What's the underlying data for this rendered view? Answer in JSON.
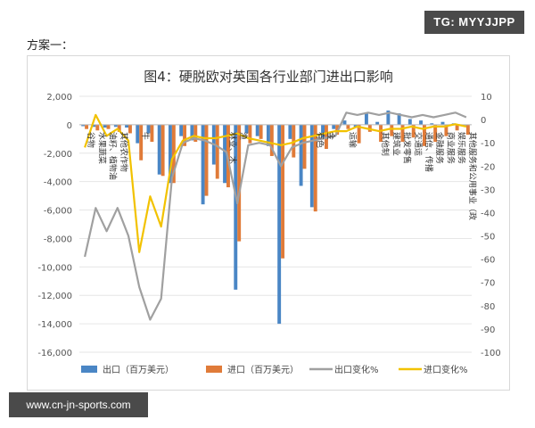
{
  "header": {
    "badge": "TG: MYYJJPP",
    "scheme_label": "方案一："
  },
  "footer": {
    "site": "www.cn-jn-sports.com"
  },
  "colors": {
    "export": "#4a86c5",
    "import": "#e07b39",
    "export_pct": "#a0a0a0",
    "import_pct": "#f2c200"
  },
  "chart_data": {
    "type": "bar",
    "title": "图4：硬脱欧对英国各行业部门进出口影响",
    "left_ylim": [
      -16000,
      2000
    ],
    "left_yticks": [
      "2,000",
      "0",
      "-2,000",
      "-4,000",
      "-6,000",
      "-8,000",
      "-10,000",
      "-12,000",
      "-14,000",
      "-16,000"
    ],
    "right_ylim": [
      -100,
      10
    ],
    "right_yticks": [
      "10",
      "0",
      "-10",
      "-20",
      "-30",
      "-40",
      "-50",
      "-60",
      "-70",
      "-80",
      "-90",
      "-100"
    ],
    "categories": [
      "谷物",
      "水果蔬菜",
      "油籽、植物油",
      "其他农作物",
      "",
      "牛",
      "",
      "",
      "",
      "",
      "",
      "",
      "",
      "林业、木",
      "渔",
      "",
      "",
      "",
      "",
      "",
      "",
      "有色",
      "金",
      "",
      "运输",
      "",
      "",
      "其他制",
      "建筑业",
      "批发零售",
      "交通运",
      "通信、传播",
      "金融服务",
      "商业服务",
      "娱乐服务",
      "其他服务和公用事业（政"
    ],
    "visible_category_labels": [
      "谷物",
      "水果蔬菜",
      "油籽、植物油",
      "其他农作物",
      "牛",
      "林业、木",
      "渔",
      "有色",
      "金",
      "运输",
      "其他制",
      "建筑业",
      "批发零售",
      "交通运",
      "通信、传播",
      "金融服务",
      "商业服务",
      "娱乐服务",
      "其他服务和公用事业（政"
    ],
    "series": [
      {
        "name": "出口（百万美元）",
        "axis": "left",
        "kind": "bar",
        "values": [
          -100,
          -150,
          -200,
          -150,
          -200,
          -1300,
          -600,
          -3500,
          -4100,
          -800,
          -1100,
          -5600,
          -2800,
          -4100,
          -11600,
          -600,
          -800,
          -1500,
          -14000,
          -1000,
          -4300,
          -5800,
          -900,
          -300,
          300,
          -200,
          800,
          200,
          1000,
          800,
          400,
          300,
          100,
          200,
          100,
          -100
        ]
      },
      {
        "name": "进口（百万美元）",
        "axis": "left",
        "kind": "bar",
        "values": [
          -300,
          -400,
          -300,
          -500,
          -600,
          -2500,
          -1200,
          -3600,
          -4100,
          -1500,
          -1200,
          -5000,
          -3800,
          -4400,
          -8200,
          -1300,
          -1000,
          -2200,
          -9400,
          -2300,
          -3100,
          -6100,
          -1700,
          -700,
          -300,
          -1300,
          -500,
          -1200,
          -800,
          -1200,
          -900,
          -1500,
          -1200,
          -800,
          -400,
          -700
        ]
      },
      {
        "name": "出口变化%",
        "axis": "right",
        "kind": "line",
        "values": [
          -59,
          -38,
          -48,
          -38,
          -50,
          -72,
          -86,
          -77,
          -25,
          -10,
          -8,
          -9,
          -11,
          -14,
          -36,
          -11,
          -10,
          -11,
          -20,
          -12,
          -10,
          -9,
          -8,
          -7,
          3,
          2,
          3,
          2,
          3,
          2,
          1,
          2,
          1,
          2,
          3,
          1
        ]
      },
      {
        "name": "进口变化%",
        "axis": "right",
        "kind": "line",
        "values": [
          -12,
          2,
          -7,
          -4,
          -9,
          -57,
          -33,
          -46,
          -17,
          -9,
          -7,
          -8,
          -8,
          -7,
          -6,
          -8,
          -9,
          -10,
          -11,
          -10,
          -8,
          -7,
          -6,
          -5,
          -5,
          -3,
          -4,
          -5,
          -4,
          -4,
          -3,
          -4,
          -3,
          -3,
          -2,
          -3
        ]
      }
    ],
    "legend_position": "bottom"
  }
}
